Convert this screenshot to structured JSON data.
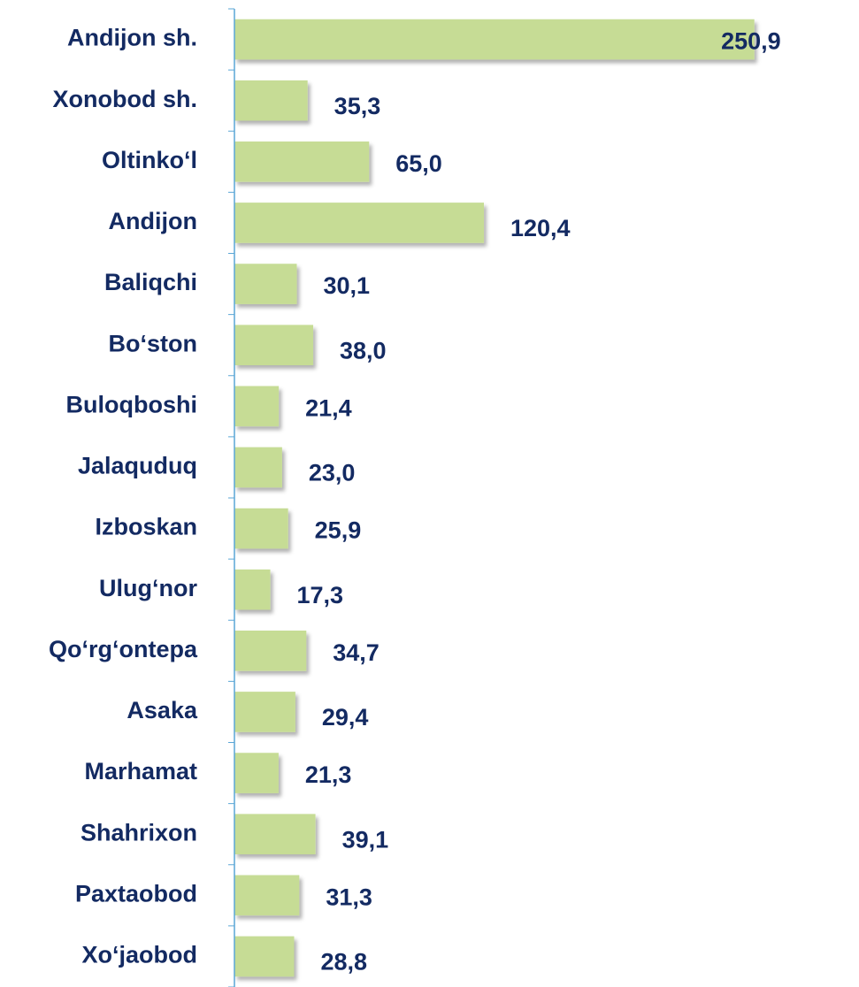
{
  "chart_data": {
    "type": "barh",
    "categories": [
      "Andijon sh.",
      "Xonobod sh.",
      "Oltinko‘l",
      "Andijon",
      "Baliqchi",
      "Bo‘ston",
      "Buloqboshi",
      "Jalaquduq",
      "Izboskan",
      "Ulug‘nor",
      "Qo‘rg‘ontepa",
      "Asaka",
      "Marhamat",
      "Shahrixon",
      "Paxtaobod",
      "Xo‘jaobod"
    ],
    "values": [
      250.9,
      35.3,
      65.0,
      120.4,
      30.1,
      38.0,
      21.4,
      23.0,
      25.9,
      17.3,
      34.7,
      29.4,
      21.3,
      39.1,
      31.3,
      28.8
    ],
    "value_labels": [
      "250,9",
      "35,3",
      "65,0",
      "120,4",
      "30,1",
      "38,0",
      "21,4",
      "23,0",
      "25,9",
      "17,3",
      "34,7",
      "29,4",
      "21,3",
      "39,1",
      "31,3",
      "28,8"
    ],
    "color": "#c6dc95",
    "xlim": [
      0,
      260
    ]
  }
}
